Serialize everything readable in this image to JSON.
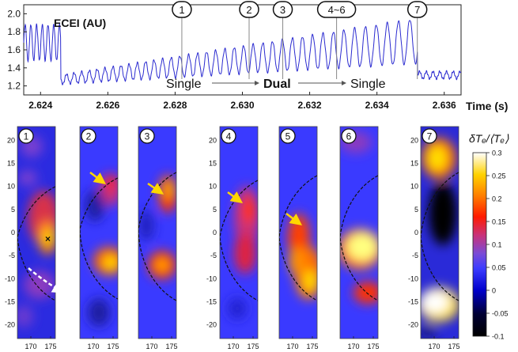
{
  "figure": {
    "trace_title": "ECEI (AU)",
    "time_axis_label": "Time (s)",
    "phase_labels": [
      "Single",
      "Dual",
      "Single"
    ],
    "marker_labels": [
      "1",
      "2",
      "3",
      "4~6",
      "7"
    ],
    "panel_labels": [
      "1",
      "2",
      "3",
      "4",
      "5",
      "6",
      "7"
    ],
    "colorbar_label": "δTₑ/⟨Tₑ⟩"
  },
  "chart_data": [
    {
      "type": "line",
      "title": "ECEI (AU)",
      "xlabel": "Time (s)",
      "ylabel": "",
      "xlim": [
        2.6235,
        2.6365
      ],
      "ylim": [
        1.1,
        2.1
      ],
      "x_ticks": [
        "2.624",
        "2.626",
        "2.628",
        "2.630",
        "2.632",
        "2.634",
        "2.636"
      ],
      "y_ticks": [
        "1.2",
        "1.4",
        "1.6",
        "1.8",
        "2.0"
      ],
      "segments": [
        {
          "x_start": 2.6235,
          "x_end": 2.6246,
          "period": 0.00017,
          "mean": 1.68,
          "amplitude": 0.2
        },
        {
          "x_start": 2.6246,
          "x_end": 2.6352,
          "period_start": 0.00022,
          "period_end": 0.00034,
          "mean_start": 1.27,
          "mean_end": 1.7,
          "amplitude_start": 0.05,
          "amplitude_end": 0.25
        },
        {
          "x_start": 2.6352,
          "x_end": 2.6365,
          "period": 0.0002,
          "mean": 1.32,
          "amplitude": 0.04
        }
      ],
      "event_markers": [
        {
          "label": "1",
          "x": 2.6282
        },
        {
          "label": "2",
          "x": 2.6302
        },
        {
          "label": "3",
          "x": 2.6312
        },
        {
          "label": "4~6",
          "x": 2.6328
        },
        {
          "label": "7",
          "x": 2.6352
        }
      ],
      "series": [
        {
          "values": []
        }
      ]
    },
    {
      "type": "heatmap",
      "y_ticks": [
        "20",
        "15",
        "10",
        "5",
        "0",
        "-5",
        "-10",
        "-15",
        "-20"
      ],
      "x_ticks": [
        "170",
        "175"
      ],
      "ylim": [
        -23,
        23
      ],
      "colorbar_ticks": [
        "0.3",
        "0.25",
        "0.2",
        "0.15",
        "0.1",
        "0.05",
        "0",
        "-0.05",
        "-0.1"
      ],
      "colorbar_range": [
        -0.1,
        0.3
      ]
    }
  ]
}
